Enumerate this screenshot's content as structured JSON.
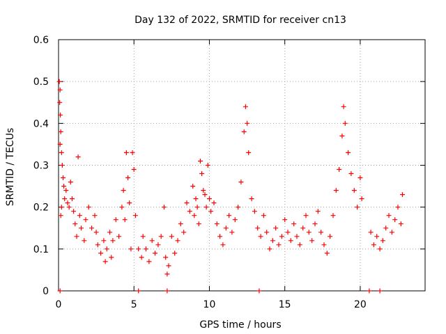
{
  "chart_data": {
    "type": "scatter",
    "title": "Day 132 of 2022, SRMTID for receiver cn13",
    "xlabel": "GPS time / hours",
    "ylabel": "SRMTID / TECUs",
    "xlim": [
      0,
      24.3
    ],
    "ylim": [
      0,
      0.6
    ],
    "x_ticks": [
      0,
      5,
      10,
      15,
      20
    ],
    "x_tick_labels": [
      "0",
      "5",
      "10",
      "15",
      "20"
    ],
    "y_ticks": [
      0,
      0.1,
      0.2,
      0.3,
      0.4,
      0.5,
      0.6
    ],
    "y_tick_labels": [
      "0",
      "0.1",
      "0.2",
      "0.3",
      "0.4",
      "0.5",
      "0.6"
    ],
    "grid": true,
    "marker": "plus",
    "series": [
      {
        "name": "SRMTID",
        "color": "#ff0000",
        "points": [
          [
            0.05,
            0.5
          ],
          [
            0.1,
            0.48
          ],
          [
            0.08,
            0.45
          ],
          [
            0.12,
            0.42
          ],
          [
            0.15,
            0.38
          ],
          [
            0.1,
            0.35
          ],
          [
            0.2,
            0.33
          ],
          [
            0.25,
            0.3
          ],
          [
            0.3,
            0.27
          ],
          [
            0.35,
            0.25
          ],
          [
            0.4,
            0.22
          ],
          [
            0.2,
            0.2
          ],
          [
            0.15,
            0.18
          ],
          [
            0.5,
            0.24
          ],
          [
            0.6,
            0.21
          ],
          [
            0.7,
            0.2
          ],
          [
            0.8,
            0.26
          ],
          [
            0.9,
            0.22
          ],
          [
            1.0,
            0.19
          ],
          [
            1.1,
            0.16
          ],
          [
            1.2,
            0.13
          ],
          [
            1.3,
            0.32
          ],
          [
            1.4,
            0.18
          ],
          [
            1.5,
            0.15
          ],
          [
            1.7,
            0.12
          ],
          [
            1.8,
            0.17
          ],
          [
            2.0,
            0.2
          ],
          [
            2.2,
            0.15
          ],
          [
            2.4,
            0.18
          ],
          [
            2.5,
            0.14
          ],
          [
            2.6,
            0.11
          ],
          [
            2.8,
            0.09
          ],
          [
            3.0,
            0.12
          ],
          [
            3.1,
            0.07
          ],
          [
            3.2,
            0.1
          ],
          [
            3.4,
            0.14
          ],
          [
            3.5,
            0.08
          ],
          [
            3.6,
            0.12
          ],
          [
            3.8,
            0.17
          ],
          [
            4.0,
            0.13
          ],
          [
            4.2,
            0.2
          ],
          [
            4.3,
            0.24
          ],
          [
            4.4,
            0.17
          ],
          [
            4.5,
            0.33
          ],
          [
            4.6,
            0.27
          ],
          [
            4.7,
            0.21
          ],
          [
            4.8,
            0.1
          ],
          [
            4.9,
            0.33
          ],
          [
            5.0,
            0.29
          ],
          [
            5.1,
            0.18
          ],
          [
            5.3,
            0.1
          ],
          [
            5.5,
            0.08
          ],
          [
            5.6,
            0.13
          ],
          [
            5.8,
            0.1
          ],
          [
            6.0,
            0.07
          ],
          [
            6.2,
            0.12
          ],
          [
            6.4,
            0.09
          ],
          [
            6.6,
            0.11
          ],
          [
            6.8,
            0.13
          ],
          [
            7.0,
            0.2
          ],
          [
            7.1,
            0.08
          ],
          [
            7.2,
            0.04
          ],
          [
            7.3,
            0.06
          ],
          [
            7.5,
            0.13
          ],
          [
            7.7,
            0.09
          ],
          [
            7.9,
            0.12
          ],
          [
            8.1,
            0.16
          ],
          [
            8.3,
            0.14
          ],
          [
            8.5,
            0.21
          ],
          [
            8.7,
            0.19
          ],
          [
            8.9,
            0.25
          ],
          [
            9.0,
            0.18
          ],
          [
            9.1,
            0.22
          ],
          [
            9.2,
            0.2
          ],
          [
            9.3,
            0.16
          ],
          [
            9.4,
            0.31
          ],
          [
            9.5,
            0.28
          ],
          [
            9.6,
            0.24
          ],
          [
            9.7,
            0.23
          ],
          [
            9.8,
            0.2
          ],
          [
            9.9,
            0.3
          ],
          [
            10.0,
            0.22
          ],
          [
            10.1,
            0.19
          ],
          [
            10.3,
            0.21
          ],
          [
            10.5,
            0.16
          ],
          [
            10.7,
            0.13
          ],
          [
            10.9,
            0.11
          ],
          [
            11.1,
            0.15
          ],
          [
            11.3,
            0.18
          ],
          [
            11.5,
            0.14
          ],
          [
            11.7,
            0.17
          ],
          [
            11.9,
            0.2
          ],
          [
            12.1,
            0.26
          ],
          [
            12.3,
            0.38
          ],
          [
            12.4,
            0.44
          ],
          [
            12.5,
            0.4
          ],
          [
            12.6,
            0.33
          ],
          [
            12.8,
            0.22
          ],
          [
            13.0,
            0.19
          ],
          [
            13.2,
            0.15
          ],
          [
            13.4,
            0.13
          ],
          [
            13.6,
            0.18
          ],
          [
            13.8,
            0.14
          ],
          [
            14.0,
            0.1
          ],
          [
            14.2,
            0.12
          ],
          [
            14.4,
            0.15
          ],
          [
            14.6,
            0.11
          ],
          [
            14.8,
            0.13
          ],
          [
            15.0,
            0.17
          ],
          [
            15.2,
            0.14
          ],
          [
            15.4,
            0.12
          ],
          [
            15.6,
            0.16
          ],
          [
            15.8,
            0.13
          ],
          [
            16.0,
            0.11
          ],
          [
            16.2,
            0.15
          ],
          [
            16.4,
            0.18
          ],
          [
            16.6,
            0.14
          ],
          [
            16.8,
            0.12
          ],
          [
            17.0,
            0.16
          ],
          [
            17.2,
            0.19
          ],
          [
            17.4,
            0.14
          ],
          [
            17.6,
            0.11
          ],
          [
            17.8,
            0.09
          ],
          [
            18.0,
            0.13
          ],
          [
            18.2,
            0.18
          ],
          [
            18.4,
            0.24
          ],
          [
            18.6,
            0.29
          ],
          [
            18.8,
            0.37
          ],
          [
            18.9,
            0.44
          ],
          [
            19.0,
            0.4
          ],
          [
            19.2,
            0.33
          ],
          [
            19.4,
            0.28
          ],
          [
            19.6,
            0.24
          ],
          [
            19.8,
            0.2
          ],
          [
            20.0,
            0.27
          ],
          [
            20.1,
            0.22
          ],
          [
            20.7,
            0.14
          ],
          [
            20.9,
            0.11
          ],
          [
            21.1,
            0.13
          ],
          [
            21.3,
            0.1
          ],
          [
            21.5,
            0.12
          ],
          [
            21.7,
            0.15
          ],
          [
            21.9,
            0.18
          ],
          [
            22.1,
            0.14
          ],
          [
            22.3,
            0.17
          ],
          [
            22.5,
            0.2
          ],
          [
            22.7,
            0.16
          ],
          [
            22.8,
            0.23
          ]
        ]
      }
    ],
    "zero_markers_x": [
      0.1,
      5.3,
      7.2,
      13.3,
      20.6,
      21.3
    ]
  }
}
